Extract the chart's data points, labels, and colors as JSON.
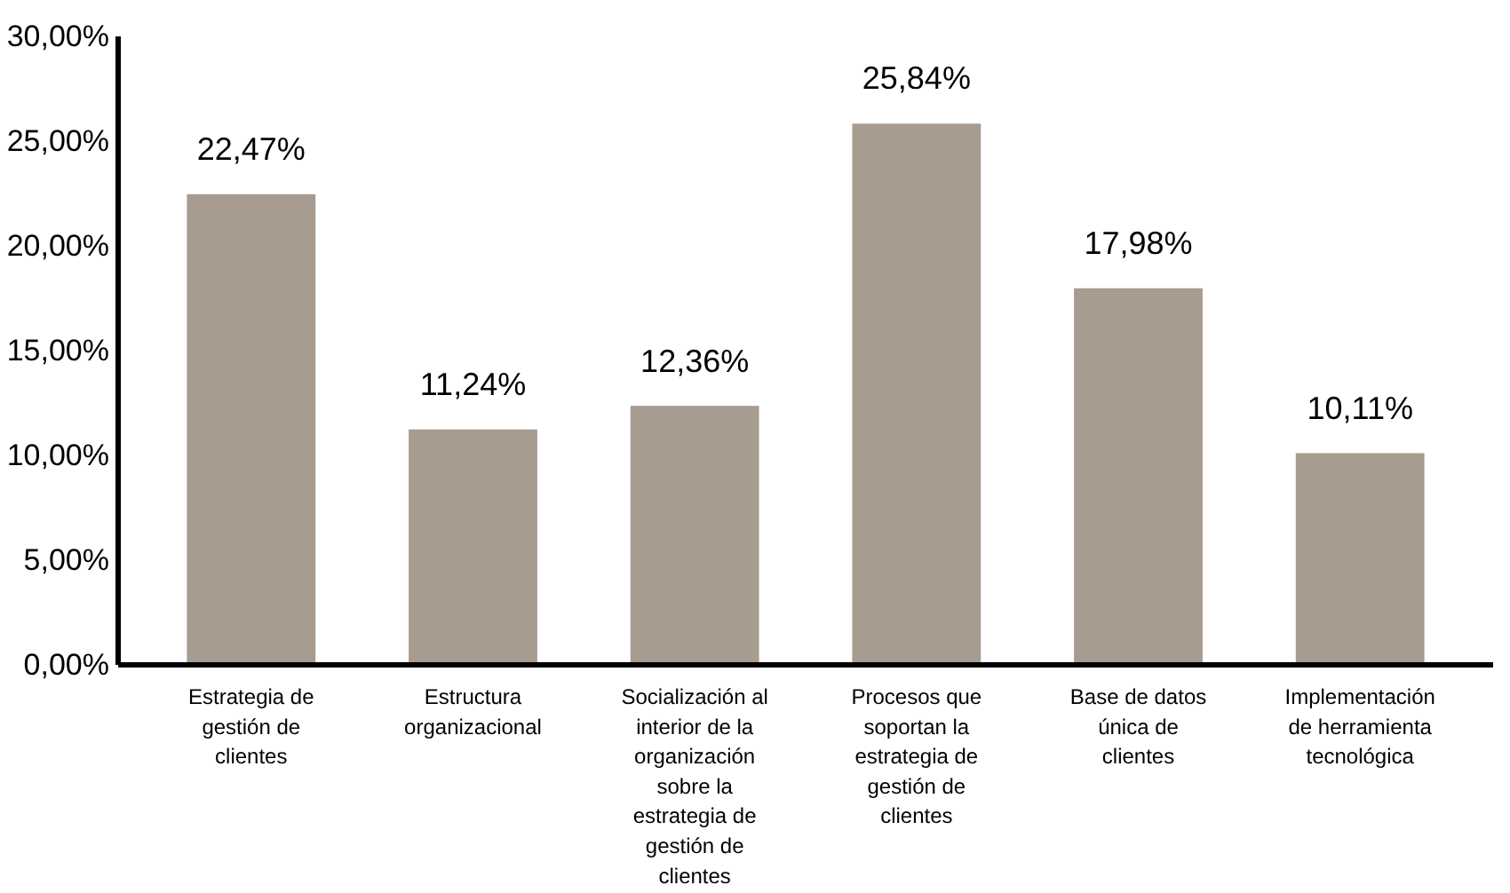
{
  "chart_data": {
    "type": "bar",
    "categories": [
      "Estrategia de gestión de clientes",
      "Estructura organizacional",
      "Socialización al interior de la organización sobre la estrategia de gestión de clientes",
      "Procesos que soportan la estrategia de gestión de clientes",
      "Base de datos única de clientes",
      "Implementación de herramienta tecnológica"
    ],
    "values": [
      22.47,
      11.24,
      12.36,
      25.84,
      17.98,
      10.11
    ],
    "value_labels": [
      "22,47%",
      "11,24%",
      "12,36%",
      "25,84%",
      "17,98%",
      "10,11%"
    ],
    "color": "#a89b90",
    "ylim": [
      0,
      30
    ],
    "yticks": [
      {
        "value": 0,
        "label": "0,00%"
      },
      {
        "value": 5,
        "label": "5,00%"
      },
      {
        "value": 10,
        "label": "10,00%"
      },
      {
        "value": 15,
        "label": "15,00%"
      },
      {
        "value": 20,
        "label": "20,00%"
      },
      {
        "value": 25,
        "label": "25,00%"
      },
      {
        "value": 30,
        "label": "30,00%"
      }
    ],
    "grid": false
  }
}
